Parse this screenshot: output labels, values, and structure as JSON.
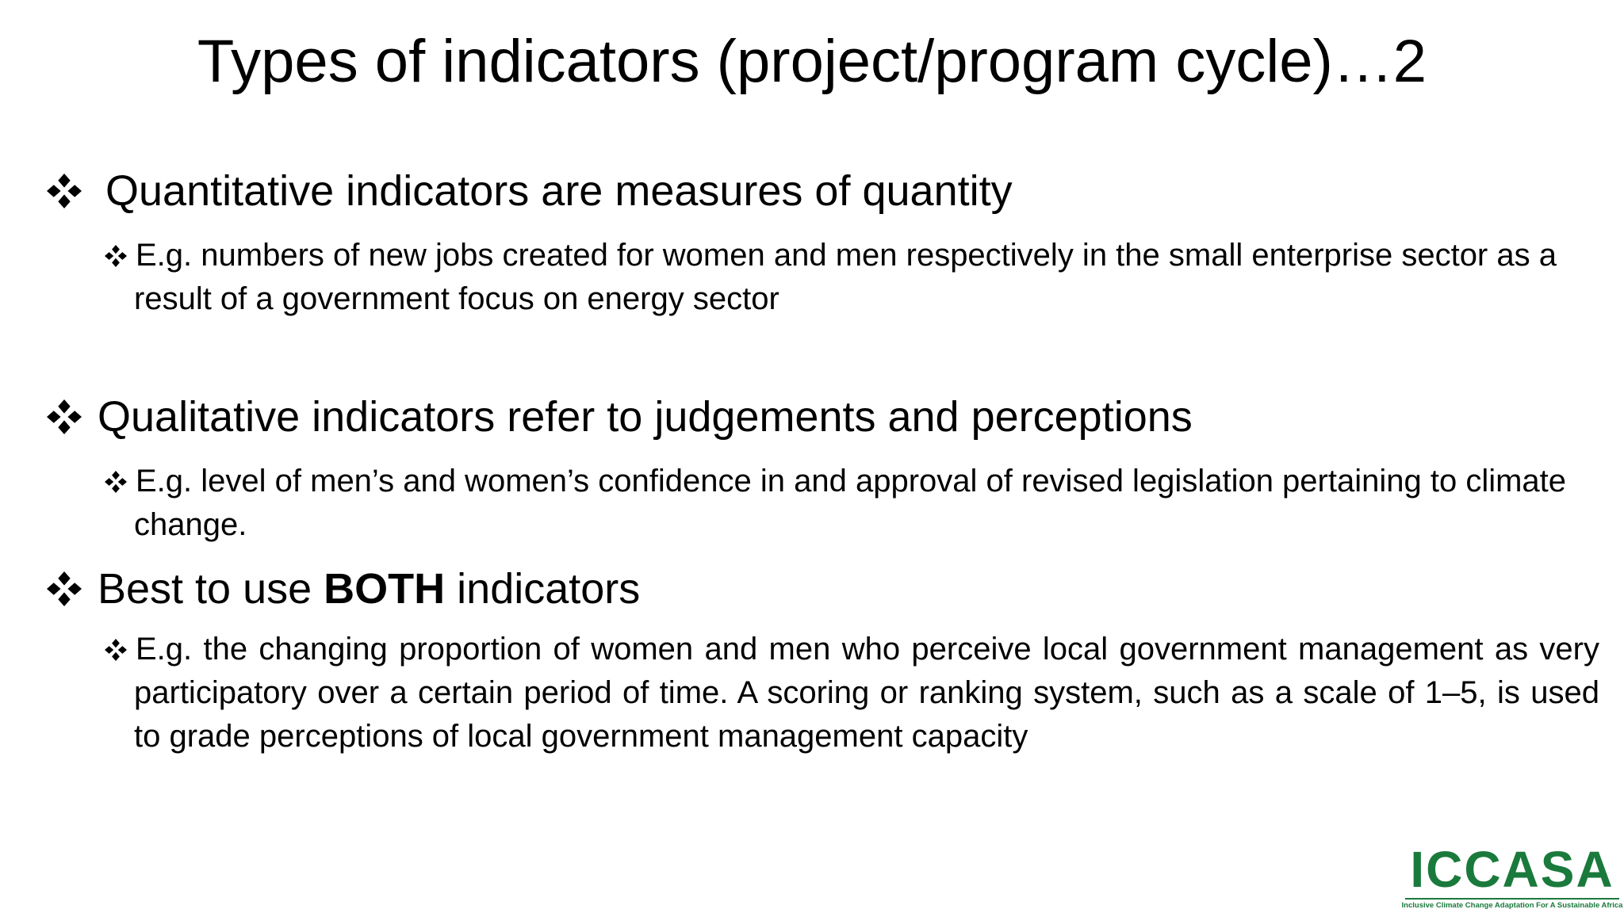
{
  "title": "Types of indicators (project/program cycle)…2",
  "bullets": [
    {
      "text": "Quantitative indicators are measures of quantity",
      "sub": "E.g. numbers of new jobs created for women and men respectively in the small enterprise sector as a result of a government focus on energy sector"
    },
    {
      "text": "Qualitative indicators refer to judgements and perceptions",
      "sub": "E.g. level of men’s and women’s confidence in and approval of revised legislation pertaining to climate change."
    },
    {
      "parts": [
        "Best to use ",
        "BOTH",
        " indicators"
      ],
      "sub": "E.g. the changing proportion of women and men who perceive local government management as very participatory over a certain period of time. A scoring or ranking system, such as a scale of 1–5, is used to grade perceptions of local government management capacity"
    }
  ],
  "logo": {
    "name": "ICCASA",
    "tagline": "Inclusive Climate Change Adaptation For A Sustainable Africa"
  }
}
